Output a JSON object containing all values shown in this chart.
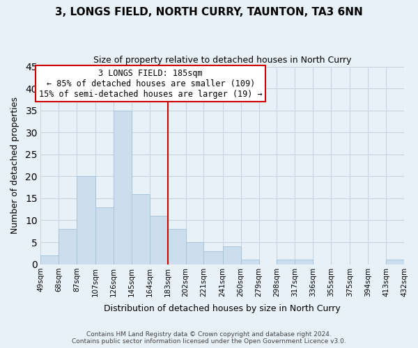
{
  "title": "3, LONGS FIELD, NORTH CURRY, TAUNTON, TA3 6NN",
  "subtitle": "Size of property relative to detached houses in North Curry",
  "xlabel": "Distribution of detached houses by size in North Curry",
  "ylabel": "Number of detached properties",
  "bar_color": "#ccdded",
  "bar_edgecolor": "#a8c4d8",
  "reference_line_x": 183,
  "reference_line_color": "#cc0000",
  "bin_edges": [
    49,
    68,
    87,
    107,
    126,
    145,
    164,
    183,
    202,
    221,
    241,
    260,
    279,
    298,
    317,
    336,
    355,
    375,
    394,
    413,
    432
  ],
  "bin_labels": [
    "49sqm",
    "68sqm",
    "87sqm",
    "107sqm",
    "126sqm",
    "145sqm",
    "164sqm",
    "183sqm",
    "202sqm",
    "221sqm",
    "241sqm",
    "260sqm",
    "279sqm",
    "298sqm",
    "317sqm",
    "336sqm",
    "355sqm",
    "375sqm",
    "394sqm",
    "413sqm",
    "432sqm"
  ],
  "counts": [
    2,
    8,
    20,
    13,
    35,
    16,
    11,
    8,
    5,
    3,
    4,
    1,
    0,
    1,
    1,
    0,
    0,
    0,
    0,
    1
  ],
  "ylim": [
    0,
    45
  ],
  "yticks": [
    0,
    5,
    10,
    15,
    20,
    25,
    30,
    35,
    40,
    45
  ],
  "annotation_title": "3 LONGS FIELD: 185sqm",
  "annotation_line1": "← 85% of detached houses are smaller (109)",
  "annotation_line2": "15% of semi-detached houses are larger (19) →",
  "annotation_box_color": "#ffffff",
  "annotation_box_edgecolor": "#cc0000",
  "footer_line1": "Contains HM Land Registry data © Crown copyright and database right 2024.",
  "footer_line2": "Contains public sector information licensed under the Open Government Licence v3.0.",
  "background_color": "#e8f0f8",
  "grid_color": "#c8d4e0",
  "title_fontsize": 11,
  "subtitle_fontsize": 9,
  "ylabel_fontsize": 9,
  "xlabel_fontsize": 9,
  "tick_fontsize": 7.5,
  "footer_fontsize": 6.5,
  "annot_fontsize": 8.5
}
